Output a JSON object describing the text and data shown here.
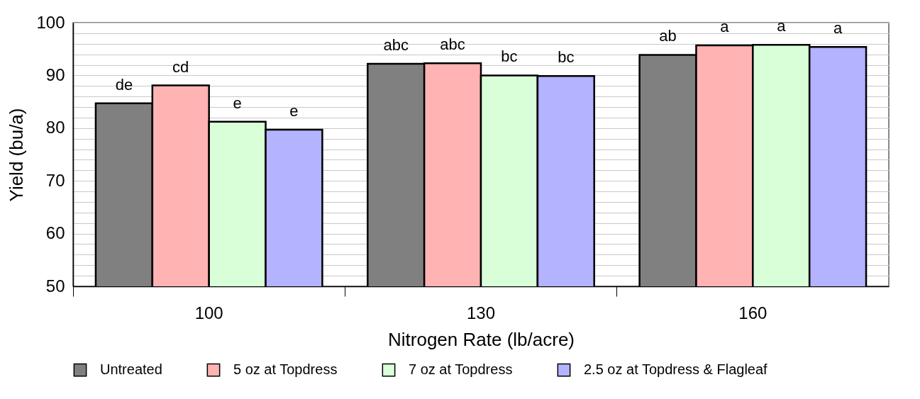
{
  "chart_data": {
    "type": "bar",
    "xlabel": "Nitrogen Rate (lb/acre)",
    "ylabel": "Yield (bu/a)",
    "categories": [
      "100",
      "130",
      "160"
    ],
    "series": [
      {
        "name": "Untreated",
        "color": "#808080",
        "values": [
          84.7,
          92.2,
          93.9
        ],
        "value_labels": [
          "de",
          "abc",
          "ab"
        ]
      },
      {
        "name": "5 oz at Topdress",
        "color": "#ffb3b3",
        "values": [
          88.1,
          92.3,
          95.7
        ],
        "value_labels": [
          "cd",
          "abc",
          "a"
        ]
      },
      {
        "name": "7 oz at Topdress",
        "color": "#d9ffd9",
        "values": [
          81.2,
          90.0,
          95.8
        ],
        "value_labels": [
          "e",
          "bc",
          "a"
        ]
      },
      {
        "name": "2.5 oz at Topdress & Flagleaf",
        "color": "#b3b3ff",
        "values": [
          79.7,
          89.9,
          95.4
        ],
        "value_labels": [
          "e",
          "bc",
          "a"
        ]
      }
    ],
    "ylim": [
      50,
      100
    ],
    "yticks": [
      50,
      {
        "value": 52,
        "label": null
      },
      {
        "value": 54,
        "label": null
      },
      {
        "value": 56,
        "label": null
      },
      {
        "value": 58,
        "label": null
      },
      60,
      {
        "value": 62,
        "label": null
      },
      {
        "value": 64,
        "label": null
      },
      {
        "value": 66,
        "label": null
      },
      {
        "value": 68,
        "label": null
      },
      70,
      {
        "value": 72,
        "label": null
      },
      {
        "value": 74,
        "label": null
      },
      {
        "value": 76,
        "label": null
      },
      {
        "value": 78,
        "label": null
      },
      80,
      {
        "value": 82,
        "label": null
      },
      {
        "value": 84,
        "label": null
      },
      {
        "value": 86,
        "label": null
      },
      {
        "value": 88,
        "label": null
      },
      90,
      {
        "value": 92,
        "label": null
      },
      {
        "value": 94,
        "label": null
      },
      {
        "value": 96,
        "label": null
      },
      {
        "value": 98,
        "label": null
      },
      100
    ],
    "grid": "y",
    "legend": "bottom"
  }
}
